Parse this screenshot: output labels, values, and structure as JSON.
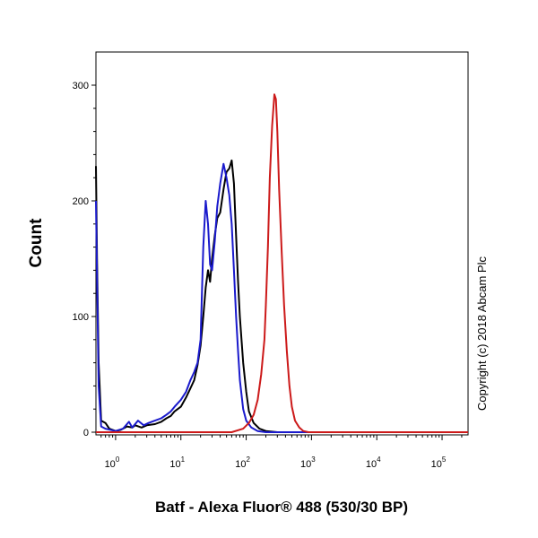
{
  "chart_data": {
    "type": "line",
    "xlabel": "Batf - Alexa Fluor® 488 (530/30 BP)",
    "ylabel": "Count",
    "x_scale": "log",
    "xlim": [
      0.5,
      250000
    ],
    "ylim": [
      0,
      310
    ],
    "x_ticks": [
      {
        "base": "10",
        "exp": "0",
        "value": 1
      },
      {
        "base": "10",
        "exp": "1",
        "value": 10
      },
      {
        "base": "10",
        "exp": "2",
        "value": 100
      },
      {
        "base": "10",
        "exp": "3",
        "value": 1000
      },
      {
        "base": "10",
        "exp": "4",
        "value": 10000
      },
      {
        "base": "10",
        "exp": "5",
        "value": 100000
      }
    ],
    "y_ticks": [
      {
        "label": "0",
        "value": 0
      },
      {
        "label": "100",
        "value": 100
      },
      {
        "label": "200",
        "value": 200
      },
      {
        "label": "300",
        "value": 300
      }
    ],
    "grid": false,
    "legend": "none",
    "series": [
      {
        "color": "#000000",
        "points": [
          [
            0.5,
            230
          ],
          [
            0.52,
            150
          ],
          [
            0.55,
            60
          ],
          [
            0.6,
            10
          ],
          [
            0.7,
            8
          ],
          [
            0.8,
            3
          ],
          [
            0.9,
            2
          ],
          [
            1,
            1
          ],
          [
            1.2,
            2
          ],
          [
            1.5,
            5
          ],
          [
            1.8,
            4
          ],
          [
            2.0,
            6
          ],
          [
            2.5,
            4
          ],
          [
            3,
            6
          ],
          [
            4,
            7
          ],
          [
            5,
            9
          ],
          [
            6,
            12
          ],
          [
            7,
            14
          ],
          [
            8,
            18
          ],
          [
            10,
            22
          ],
          [
            12,
            30
          ],
          [
            14,
            38
          ],
          [
            16,
            45
          ],
          [
            18,
            58
          ],
          [
            20,
            75
          ],
          [
            22,
            100
          ],
          [
            24,
            125
          ],
          [
            26,
            140
          ],
          [
            28,
            130
          ],
          [
            30,
            150
          ],
          [
            33,
            170
          ],
          [
            36,
            185
          ],
          [
            40,
            190
          ],
          [
            45,
            210
          ],
          [
            50,
            225
          ],
          [
            55,
            228
          ],
          [
            60,
            235
          ],
          [
            65,
            215
          ],
          [
            70,
            170
          ],
          [
            75,
            130
          ],
          [
            80,
            100
          ],
          [
            90,
            60
          ],
          [
            100,
            35
          ],
          [
            110,
            18
          ],
          [
            130,
            8
          ],
          [
            160,
            3
          ],
          [
            200,
            1
          ],
          [
            300,
            0
          ],
          [
            1000,
            0
          ],
          [
            250000,
            0
          ]
        ]
      },
      {
        "color": "#1a1acc",
        "points": [
          [
            0.5,
            200
          ],
          [
            0.55,
            40
          ],
          [
            0.6,
            5
          ],
          [
            0.7,
            3
          ],
          [
            1,
            1
          ],
          [
            1.3,
            3
          ],
          [
            1.6,
            9
          ],
          [
            1.8,
            4
          ],
          [
            2.2,
            10
          ],
          [
            2.7,
            6
          ],
          [
            3.2,
            8
          ],
          [
            4,
            10
          ],
          [
            5,
            12
          ],
          [
            6,
            15
          ],
          [
            7,
            18
          ],
          [
            8,
            22
          ],
          [
            10,
            28
          ],
          [
            12,
            35
          ],
          [
            14,
            45
          ],
          [
            16,
            52
          ],
          [
            18,
            60
          ],
          [
            20,
            80
          ],
          [
            22,
            160
          ],
          [
            24,
            200
          ],
          [
            26,
            180
          ],
          [
            28,
            145
          ],
          [
            30,
            140
          ],
          [
            33,
            165
          ],
          [
            36,
            195
          ],
          [
            40,
            215
          ],
          [
            45,
            232
          ],
          [
            50,
            220
          ],
          [
            55,
            205
          ],
          [
            60,
            180
          ],
          [
            65,
            140
          ],
          [
            70,
            100
          ],
          [
            75,
            70
          ],
          [
            80,
            45
          ],
          [
            90,
            20
          ],
          [
            100,
            10
          ],
          [
            120,
            4
          ],
          [
            150,
            1
          ],
          [
            200,
            0
          ],
          [
            1000,
            0
          ],
          [
            250000,
            0
          ]
        ]
      },
      {
        "color": "#cc1a1a",
        "points": [
          [
            0.5,
            0
          ],
          [
            60,
            0
          ],
          [
            90,
            3
          ],
          [
            110,
            8
          ],
          [
            130,
            15
          ],
          [
            150,
            28
          ],
          [
            170,
            50
          ],
          [
            190,
            80
          ],
          [
            200,
            110
          ],
          [
            215,
            160
          ],
          [
            230,
            220
          ],
          [
            250,
            265
          ],
          [
            270,
            292
          ],
          [
            285,
            288
          ],
          [
            300,
            260
          ],
          [
            320,
            210
          ],
          [
            350,
            155
          ],
          [
            380,
            110
          ],
          [
            420,
            70
          ],
          [
            460,
            40
          ],
          [
            500,
            22
          ],
          [
            560,
            10
          ],
          [
            650,
            4
          ],
          [
            750,
            1
          ],
          [
            900,
            0
          ],
          [
            250000,
            0
          ]
        ]
      }
    ]
  },
  "copyright": "Copyright (c) 2018 Abcam Plc"
}
